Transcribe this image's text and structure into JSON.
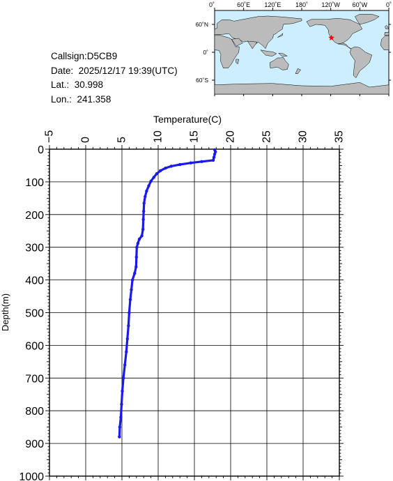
{
  "info": {
    "callsign": "Callsign:D5CB9",
    "date": "Date:  2025/12/17 19:39(UTC)",
    "lat": "Lat.:  30.998",
    "lon": "Lon.:  241.358"
  },
  "map": {
    "top_labels": [
      "0˚",
      "60˚E",
      "120˚E",
      "180˚",
      "120˚W",
      "60˚W",
      "0˚"
    ],
    "left_labels": [
      "60˚N",
      "0˚",
      "60˚S"
    ],
    "marker": {
      "lat": 30.998,
      "lon": 241.358,
      "color": "#ff0000"
    },
    "ocean_color": "#cceeff",
    "land_color": "#bbbbbb"
  },
  "chart_data": {
    "type": "scatter",
    "xlabel": "Temperature(C)",
    "ylabel": "Depth(m)",
    "xlim": [
      -5,
      35
    ],
    "ylim": [
      0,
      1000
    ],
    "y_inverted": true,
    "x_axis_position": "top",
    "x_ticks": [
      "-5",
      "0",
      "5",
      "10",
      "15",
      "20",
      "25",
      "30",
      "35"
    ],
    "y_ticks": [
      "0",
      "100",
      "200",
      "300",
      "400",
      "500",
      "600",
      "700",
      "800",
      "900",
      "1000"
    ],
    "grid": true,
    "series_color": "#1a1aee",
    "profile": [
      [
        17.8,
        2
      ],
      [
        17.9,
        8
      ],
      [
        17.8,
        15
      ],
      [
        17.7,
        25
      ],
      [
        17.6,
        34
      ],
      [
        16.0,
        38
      ],
      [
        14.5,
        42
      ],
      [
        13.0,
        47
      ],
      [
        11.8,
        52
      ],
      [
        11.0,
        58
      ],
      [
        10.3,
        66
      ],
      [
        9.8,
        75
      ],
      [
        9.4,
        86
      ],
      [
        9.0,
        98
      ],
      [
        8.7,
        112
      ],
      [
        8.4,
        128
      ],
      [
        8.2,
        145
      ],
      [
        8.05,
        165
      ],
      [
        8.0,
        190
      ],
      [
        7.95,
        215
      ],
      [
        7.9,
        245
      ],
      [
        7.75,
        265
      ],
      [
        7.4,
        275
      ],
      [
        7.2,
        288
      ],
      [
        7.05,
        300
      ],
      [
        7.0,
        330
      ],
      [
        6.95,
        360
      ],
      [
        6.75,
        380
      ],
      [
        6.45,
        400
      ],
      [
        6.3,
        430
      ],
      [
        6.15,
        460
      ],
      [
        6.0,
        500
      ],
      [
        5.9,
        540
      ],
      [
        5.75,
        580
      ],
      [
        5.6,
        620
      ],
      [
        5.4,
        660
      ],
      [
        5.2,
        700
      ],
      [
        5.05,
        740
      ],
      [
        4.95,
        780
      ],
      [
        4.85,
        820
      ],
      [
        4.7,
        850
      ],
      [
        4.65,
        880
      ]
    ]
  }
}
